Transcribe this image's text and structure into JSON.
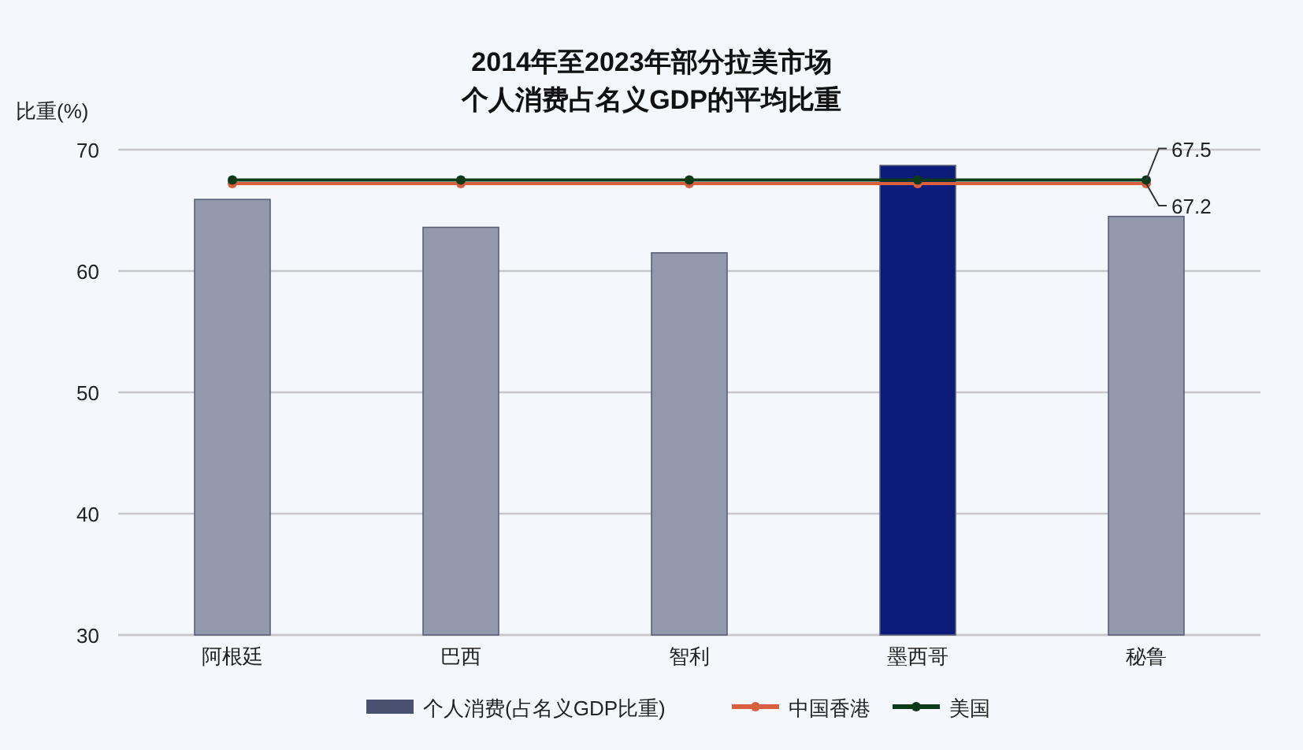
{
  "chart_data": {
    "type": "bar",
    "title": "2014年至2023年部分拉美市场",
    "subtitle": "个人消费占名义GDP的平均比重",
    "ylabel": "比重(%)",
    "categories": [
      "阿根廷",
      "巴西",
      "智利",
      "墨西哥",
      "秘鲁"
    ],
    "series": [
      {
        "name": "个人消费(占名义GDP比重)",
        "color": "#4a5070",
        "colors": [
          "#9399ad",
          "#9399ad",
          "#9399ad",
          "#0b1b7a",
          "#9399ad"
        ],
        "values": [
          65.9,
          63.6,
          61.5,
          68.7,
          64.5
        ]
      },
      {
        "name": "中国香港",
        "type": "line",
        "color": "#d9603f",
        "values": [
          67.2,
          67.2,
          67.2,
          67.2,
          67.2
        ],
        "value_labels": [
          null,
          null,
          null,
          null,
          "67.2"
        ]
      },
      {
        "name": "美国",
        "type": "line",
        "color": "#0d3b1a",
        "values": [
          67.5,
          67.5,
          67.5,
          67.5,
          67.5
        ],
        "value_labels": [
          null,
          null,
          null,
          null,
          "67.5"
        ]
      }
    ],
    "ylim": [
      30,
      70
    ],
    "yticks": [
      30,
      40,
      50,
      60,
      70
    ],
    "grid": "y",
    "legend": "bottom",
    "marker": "circle"
  }
}
